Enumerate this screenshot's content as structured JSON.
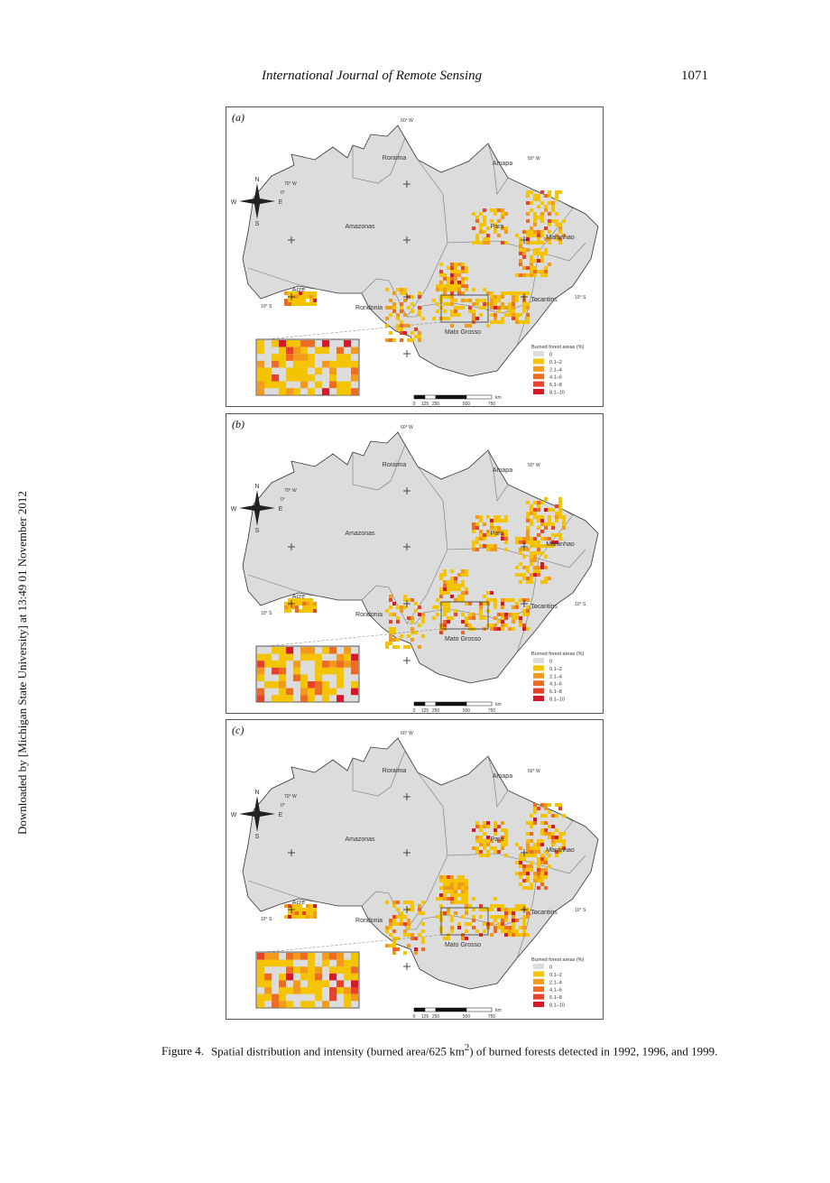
{
  "header": {
    "journal": "International Journal of Remote Sensing",
    "page": "1071"
  },
  "side_note": "Downloaded by [Michigan State University] at 13:49 01 November 2012",
  "panels": [
    {
      "label": "(a)",
      "year": "1992"
    },
    {
      "label": "(b)",
      "year": "1996"
    },
    {
      "label": "(c)",
      "year": "1999"
    }
  ],
  "states": [
    "Roraima",
    "Amapa",
    "Amazonas",
    "Para",
    "Maranhao",
    "Acre",
    "Rondonia",
    "Tocantins",
    "Mato Grosso"
  ],
  "compass": {
    "n": "N",
    "s": "S",
    "e": "E",
    "w": "W"
  },
  "graticule": {
    "lon_60": "60° W",
    "lon_50": "50° W",
    "lon_70": "70° W",
    "lat_0": "0°",
    "lat_10": "10° S"
  },
  "legend": {
    "title": "Burned forest areas (%)",
    "classes": [
      {
        "label": "0",
        "color": "#dcdcdc"
      },
      {
        "label": "0.1–2",
        "color": "#f5c400"
      },
      {
        "label": "2.1–4",
        "color": "#f39a1c"
      },
      {
        "label": "4.1–6",
        "color": "#ee6b22"
      },
      {
        "label": "6.1–8",
        "color": "#e8402a"
      },
      {
        "label": "8.1–10",
        "color": "#d9172b"
      }
    ]
  },
  "scalebar": {
    "unit": "km",
    "ticks": [
      "0",
      "125",
      "250",
      "500",
      "750"
    ]
  },
  "caption": {
    "number": "Figure 4.",
    "text_before": "Spatial distribution and intensity (burned area/625 km",
    "sup": "2",
    "text_after": ") of burned forests detected in 1992, 1996, and 1999."
  }
}
